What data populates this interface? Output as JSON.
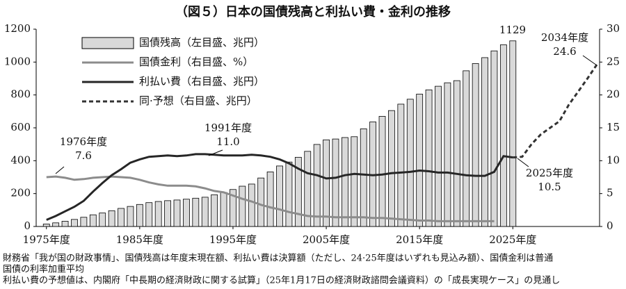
{
  "chart_data": {
    "type": "bar-line",
    "title": "（図５）日本の国債残高と利払い費・金利の推移",
    "x": [
      1975,
      1976,
      1977,
      1978,
      1979,
      1980,
      1981,
      1982,
      1983,
      1984,
      1985,
      1986,
      1987,
      1988,
      1989,
      1990,
      1991,
      1992,
      1993,
      1994,
      1995,
      1996,
      1997,
      1998,
      1999,
      2000,
      2001,
      2002,
      2003,
      2004,
      2005,
      2006,
      2007,
      2008,
      2009,
      2010,
      2011,
      2012,
      2013,
      2014,
      2015,
      2016,
      2017,
      2018,
      2019,
      2020,
      2021,
      2022,
      2023,
      2024,
      2025,
      2026,
      2027,
      2028,
      2029,
      2030,
      2031,
      2032,
      2033,
      2034
    ],
    "xlim": [
      1973.9,
      2034.3
    ],
    "xticks": [
      {
        "value": 1975,
        "label": "1975年度"
      },
      {
        "value": 1985,
        "label": "1985年度"
      },
      {
        "value": 1995,
        "label": "1995年度"
      },
      {
        "value": 2005,
        "label": "2005年度"
      },
      {
        "value": 2015,
        "label": "2015年度"
      },
      {
        "value": 2025,
        "label": "2025年度"
      }
    ],
    "ylim": [
      0,
      1200
    ],
    "yticks": [
      0,
      200,
      400,
      600,
      800,
      1000,
      1200
    ],
    "y2lim": [
      0,
      30
    ],
    "y2ticks": [
      0,
      5,
      10,
      15,
      20,
      25,
      30
    ],
    "series": [
      {
        "name": "国債残高（左目盛、兆円）",
        "kind": "bar",
        "color": "#d9d9d9",
        "values": [
          15,
          22,
          32,
          43,
          56,
          71,
          82,
          96,
          110,
          122,
          134,
          145,
          152,
          157,
          161,
          166,
          172,
          178,
          193,
          207,
          225,
          245,
          258,
          295,
          332,
          368,
          392,
          421,
          457,
          499,
          527,
          532,
          541,
          546,
          594,
          636,
          670,
          705,
          744,
          774,
          805,
          831,
          853,
          874,
          887,
          947,
          991,
          1027,
          1068,
          1105,
          1129,
          null,
          null,
          null,
          null,
          null,
          null,
          null,
          null,
          null
        ]
      },
      {
        "name": "国債金利（右目盛、%）",
        "kind": "line",
        "axis": "y2",
        "color": "#8c8c8c",
        "values": [
          7.5,
          7.6,
          7.4,
          7.1,
          7.2,
          7.4,
          7.5,
          7.6,
          7.5,
          7.4,
          7.1,
          6.7,
          6.4,
          6.2,
          6.2,
          6.2,
          6.1,
          5.8,
          5.4,
          5.2,
          4.7,
          4.2,
          3.8,
          3.3,
          2.9,
          2.6,
          2.2,
          1.9,
          1.6,
          1.5,
          1.5,
          1.4,
          1.4,
          1.4,
          1.4,
          1.3,
          1.3,
          1.2,
          1.1,
          1.0,
          0.9,
          0.9,
          0.8,
          0.8,
          0.8,
          0.8,
          0.8,
          0.8,
          0.8,
          null,
          null,
          null,
          null,
          null,
          null,
          null,
          null,
          null,
          null,
          null
        ]
      },
      {
        "name": "利払い費（右目盛、兆円）",
        "kind": "line",
        "axis": "y2",
        "color": "#262626",
        "values": [
          1.0,
          1.6,
          2.3,
          3.0,
          3.9,
          5.3,
          6.6,
          7.8,
          8.7,
          9.7,
          10.2,
          10.6,
          10.7,
          10.8,
          10.7,
          10.8,
          11.0,
          11.0,
          10.9,
          10.8,
          10.8,
          10.8,
          10.9,
          10.8,
          10.6,
          10.2,
          9.6,
          8.8,
          8.1,
          7.8,
          7.3,
          7.4,
          7.8,
          8.0,
          7.9,
          7.8,
          7.9,
          8.1,
          8.2,
          8.3,
          8.5,
          8.4,
          8.2,
          8.2,
          8.0,
          7.8,
          7.7,
          7.7,
          8.3,
          10.7,
          10.5,
          null,
          null,
          null,
          null,
          null,
          null,
          null,
          null,
          null
        ]
      },
      {
        "name": "同·予想（右目盛、兆円）",
        "kind": "dashed",
        "axis": "y2",
        "color": "#333333",
        "values": [
          null,
          null,
          null,
          null,
          null,
          null,
          null,
          null,
          null,
          null,
          null,
          null,
          null,
          null,
          null,
          null,
          null,
          null,
          null,
          null,
          null,
          null,
          null,
          null,
          null,
          null,
          null,
          null,
          null,
          null,
          null,
          null,
          null,
          null,
          null,
          null,
          null,
          null,
          null,
          null,
          null,
          null,
          null,
          null,
          null,
          null,
          null,
          null,
          null,
          null,
          10.5,
          10.6,
          12.5,
          14.0,
          15.0,
          16.0,
          18.5,
          20.5,
          22.5,
          24.6
        ]
      }
    ],
    "annotations": [
      {
        "label": "1976年度",
        "value": "7.6"
      },
      {
        "label": "1991年度",
        "value": "11.0"
      },
      {
        "label": "2025年度",
        "value": "10.5"
      },
      {
        "label": "2034年度",
        "value": "24.6"
      },
      {
        "value": "1129"
      }
    ],
    "notes": [
      "財務省「我が国の財政事情」、国債残高は年度末現在額、利払い費は決算額（ただし、24·25年度はいずれも見込み額）、国債金利は普通",
      "国債の利率加重平均",
      "利払い費の予想値は、内閣府「中長期の経済財政に関する試算」（25年1月17日の経済財政諮問会議資料）の「成長実現ケース」の見通し"
    ]
  }
}
